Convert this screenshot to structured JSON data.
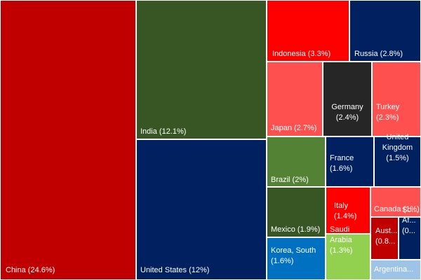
{
  "chart_data": {
    "type": "treemap",
    "title": "",
    "items": [
      {
        "label": "China (24.6%)",
        "name": "China",
        "value": 24.6,
        "color": "#C00000"
      },
      {
        "label": "India (12.1%)",
        "name": "India",
        "value": 12.1,
        "color": "#375623"
      },
      {
        "label": "United States (12%)",
        "name": "United States",
        "value": 12.0,
        "color": "#002060"
      },
      {
        "label": "Indonesia (3.3%)",
        "name": "Indonesia",
        "value": 3.3,
        "color": "#FF0000"
      },
      {
        "label": "Russia (2.8%)",
        "name": "Russia",
        "value": 2.8,
        "color": "#002060"
      },
      {
        "label": "Japan (2.7%)",
        "name": "Japan",
        "value": 2.7,
        "color": "#FF5050"
      },
      {
        "label": "Germany\n(2.4%)",
        "name": "Germany",
        "value": 2.4,
        "color": "#262626"
      },
      {
        "label": "Turkey\n(2.3%)",
        "name": "Turkey",
        "value": 2.3,
        "color": "#FF5050"
      },
      {
        "label": "Brazil (2%)",
        "name": "Brazil",
        "value": 2.0,
        "color": "#548235"
      },
      {
        "label": "France\n(1.6%)",
        "name": "France",
        "value": 1.6,
        "color": "#002060"
      },
      {
        "label": "United\nKingdom\n(1.5%)",
        "name": "United Kingdom",
        "value": 1.5,
        "color": "#002060"
      },
      {
        "label": "Mexico (1.9%)",
        "name": "Mexico",
        "value": 1.9,
        "color": "#375623"
      },
      {
        "label": "Korea, South\n(1.6%)",
        "name": "Korea, South",
        "value": 1.6,
        "color": "#0070C0"
      },
      {
        "label": "Italy\n(1.4%)",
        "name": "Italy",
        "value": 1.4,
        "color": "#FF0000"
      },
      {
        "label": "Saudi\nArabia\n(1.3%)",
        "name": "Saudi Arabia",
        "value": 1.3,
        "color": "#92D050"
      },
      {
        "label": "Canada (1%)",
        "name": "Canada",
        "value": 1.0,
        "color": "#FF5050"
      },
      {
        "label": "Aust...\n(0.8...",
        "name": "Australia",
        "value": 0.8,
        "color": "#C00000"
      },
      {
        "label": "So...\nAf...\n(0...",
        "name": "South Africa",
        "value": 0.7,
        "color": "#002060"
      },
      {
        "label": "Argentina...",
        "name": "Argentina",
        "value": 0.6,
        "color": "#9DC3E6"
      }
    ]
  }
}
